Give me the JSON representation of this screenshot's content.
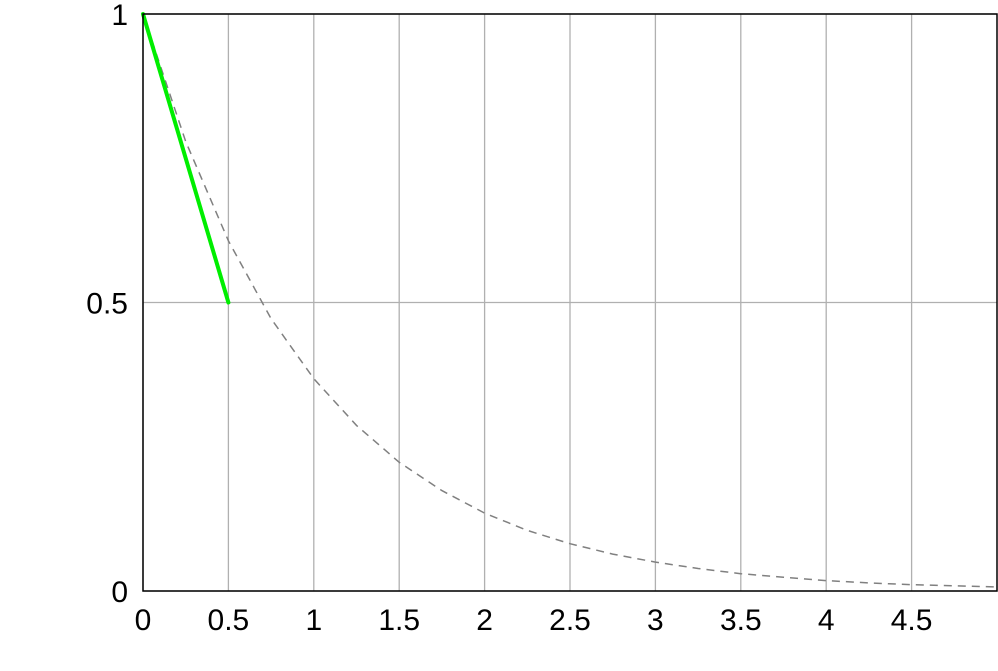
{
  "chart_data": {
    "type": "line",
    "title": "",
    "xlabel": "",
    "ylabel": "",
    "xlim": [
      0,
      5
    ],
    "ylim": [
      0,
      1
    ],
    "grid": true,
    "x_ticks": [
      0,
      0.5,
      1,
      1.5,
      2,
      2.5,
      3,
      3.5,
      4,
      4.5
    ],
    "x_tick_labels": [
      "0",
      "0.5",
      "1",
      "1.5",
      "2",
      "2.5",
      "3",
      "3.5",
      "4",
      "4.5"
    ],
    "y_ticks": [
      0,
      0.5,
      1
    ],
    "y_tick_labels": [
      "0",
      "0.5",
      "1"
    ],
    "series": [
      {
        "style": "dashed",
        "color": "#808080",
        "x": [
          0,
          0.25,
          0.5,
          0.75,
          1,
          1.25,
          1.5,
          1.75,
          2,
          2.25,
          2.5,
          2.75,
          3,
          3.25,
          3.5,
          3.75,
          4,
          4.25,
          4.5,
          4.75,
          5
        ],
        "y": [
          1,
          0.779,
          0.607,
          0.472,
          0.368,
          0.287,
          0.223,
          0.174,
          0.135,
          0.105,
          0.082,
          0.064,
          0.05,
          0.039,
          0.03,
          0.024,
          0.018,
          0.014,
          0.011,
          0.009,
          0.007
        ]
      },
      {
        "style": "solid",
        "color": "#00ee00",
        "x": [
          0,
          0.5
        ],
        "y": [
          1,
          0.5
        ]
      }
    ]
  }
}
